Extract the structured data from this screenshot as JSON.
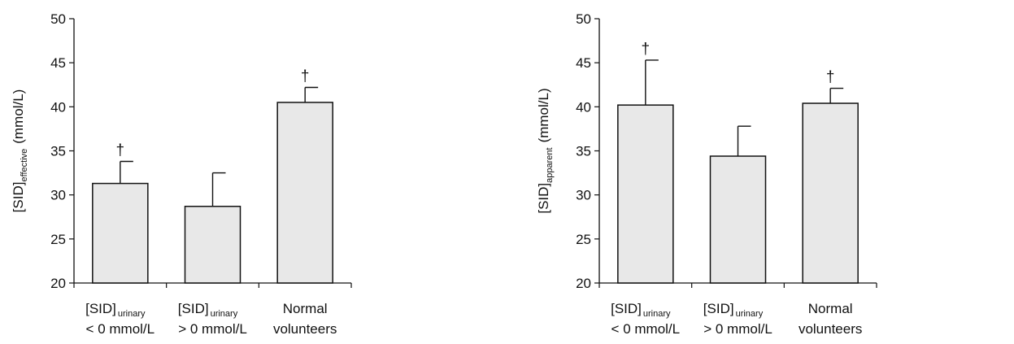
{
  "colors": {
    "bar_fill": "#e8e8e8",
    "stroke": "#111111",
    "background": "#ffffff"
  },
  "chart_data": [
    {
      "type": "bar",
      "ylabel": {
        "main": "[SID]",
        "sub": "effective",
        "unit": "(mmol/L)"
      },
      "ylim": [
        20,
        50
      ],
      "yticks": [
        20,
        25,
        30,
        35,
        40,
        45,
        50
      ],
      "grid": false,
      "legend": "none",
      "categories": [
        {
          "lines": [
            "[SID]",
            "< 0 mmol/L"
          ],
          "sub": "urinary"
        },
        {
          "lines": [
            "[SID]",
            "> 0 mmol/L"
          ],
          "sub": "urinary"
        },
        {
          "lines": [
            "Normal",
            "volunteers"
          ],
          "sub": ""
        }
      ],
      "values": [
        31.3,
        28.7,
        40.5
      ],
      "errors": [
        2.5,
        3.8,
        1.7
      ],
      "markers": [
        "†",
        "",
        "†"
      ]
    },
    {
      "type": "bar",
      "ylabel": {
        "main": "[SID]",
        "sub": "apparent",
        "unit": "(mmol/L)"
      },
      "ylim": [
        20,
        50
      ],
      "yticks": [
        20,
        25,
        30,
        35,
        40,
        45,
        50
      ],
      "grid": false,
      "legend": "none",
      "categories": [
        {
          "lines": [
            "[SID]",
            "< 0 mmol/L"
          ],
          "sub": "urinary"
        },
        {
          "lines": [
            "[SID]",
            "> 0 mmol/L"
          ],
          "sub": "urinary"
        },
        {
          "lines": [
            "Normal",
            "volunteers"
          ],
          "sub": ""
        }
      ],
      "values": [
        40.2,
        34.4,
        40.4
      ],
      "errors": [
        5.1,
        3.4,
        1.7
      ],
      "markers": [
        "†",
        "",
        "†"
      ]
    }
  ]
}
